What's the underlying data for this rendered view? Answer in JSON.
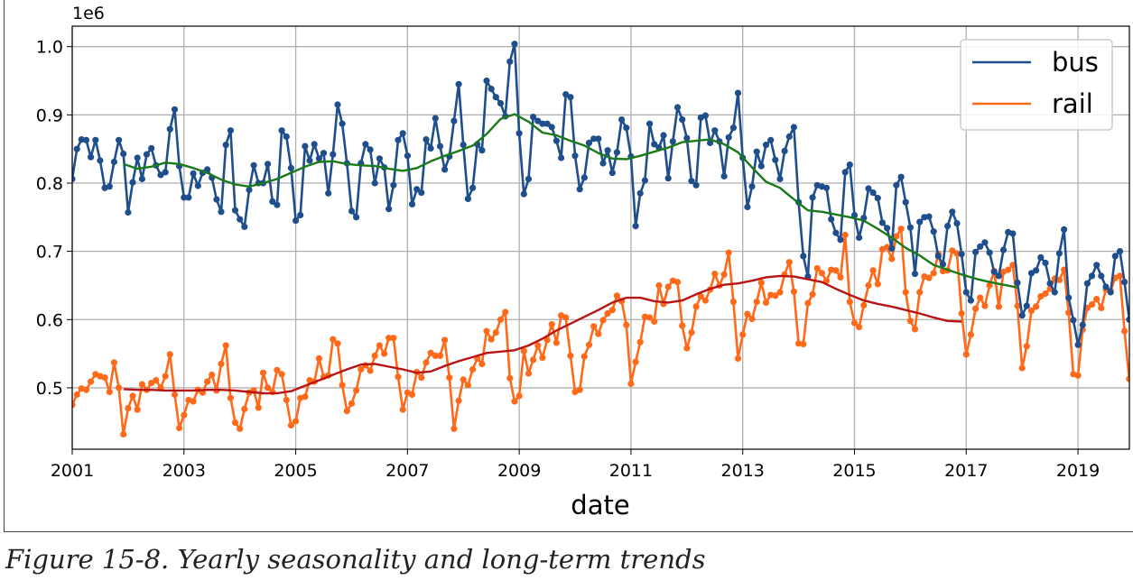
{
  "caption": "Figure 15-8. Yearly seasonality and long-term trends",
  "chart_data": {
    "type": "line",
    "title": "",
    "xlabel": "date",
    "ylabel": "",
    "y_offset_label": "1e6",
    "xlim": [
      2001.0,
      2019.92
    ],
    "ylim": [
      0.41,
      1.03
    ],
    "grid": true,
    "legend_placement": "top-right",
    "x_ticks": [
      "2001",
      "2003",
      "2005",
      "2007",
      "2009",
      "2011",
      "2013",
      "2015",
      "2017",
      "2019"
    ],
    "y_ticks": [
      "0.5",
      "0.6",
      "0.7",
      "0.8",
      "0.9",
      "1.0"
    ],
    "series": [
      {
        "name": "bus",
        "color": "#1f4e8c",
        "markers": true,
        "x_start": 2001.0,
        "x_step_months": 1,
        "values": [
          0.806,
          0.85,
          0.864,
          0.863,
          0.838,
          0.863,
          0.833,
          0.793,
          0.795,
          0.831,
          0.863,
          0.843,
          0.757,
          0.801,
          0.837,
          0.806,
          0.842,
          0.851,
          0.826,
          0.812,
          0.816,
          0.879,
          0.908,
          0.825,
          0.779,
          0.779,
          0.814,
          0.796,
          0.815,
          0.82,
          0.808,
          0.776,
          0.758,
          0.856,
          0.877,
          0.76,
          0.747,
          0.736,
          0.79,
          0.826,
          0.8,
          0.8,
          0.828,
          0.773,
          0.768,
          0.877,
          0.868,
          0.822,
          0.745,
          0.753,
          0.854,
          0.833,
          0.857,
          0.836,
          0.844,
          0.785,
          0.842,
          0.915,
          0.887,
          0.829,
          0.759,
          0.75,
          0.829,
          0.857,
          0.849,
          0.8,
          0.836,
          0.823,
          0.762,
          0.797,
          0.863,
          0.873,
          0.84,
          0.769,
          0.791,
          0.786,
          0.864,
          0.851,
          0.895,
          0.854,
          0.82,
          0.839,
          0.891,
          0.945,
          0.856,
          0.777,
          0.793,
          0.857,
          0.848,
          0.95,
          0.938,
          0.926,
          0.917,
          0.898,
          0.978,
          1.004,
          0.873,
          0.784,
          0.806,
          0.897,
          0.891,
          0.887,
          0.887,
          0.882,
          0.862,
          0.837,
          0.93,
          0.926,
          0.84,
          0.791,
          0.808,
          0.859,
          0.865,
          0.865,
          0.829,
          0.848,
          0.815,
          0.845,
          0.893,
          0.881,
          0.839,
          0.737,
          0.785,
          0.804,
          0.887,
          0.857,
          0.852,
          0.87,
          0.807,
          0.861,
          0.911,
          0.893,
          0.866,
          0.803,
          0.797,
          0.896,
          0.899,
          0.859,
          0.877,
          0.861,
          0.81,
          0.867,
          0.881,
          0.932,
          0.837,
          0.765,
          0.795,
          0.846,
          0.825,
          0.856,
          0.863,
          0.834,
          0.806,
          0.847,
          0.868,
          0.882,
          0.772,
          0.693,
          0.663,
          0.779,
          0.797,
          0.795,
          0.793,
          0.747,
          0.727,
          0.717,
          0.816,
          0.827,
          0.753,
          0.72,
          0.749,
          0.792,
          0.786,
          0.778,
          0.742,
          0.734,
          0.704,
          0.797,
          0.809,
          0.772,
          0.735,
          0.667,
          0.743,
          0.75,
          0.751,
          0.729,
          0.693,
          0.681,
          0.737,
          0.758,
          0.741,
          0.696,
          0.64,
          0.628,
          0.699,
          0.707,
          0.713,
          0.698,
          0.67,
          0.664,
          0.702,
          0.728,
          0.726,
          0.654,
          0.606,
          0.62,
          0.668,
          0.672,
          0.691,
          0.683,
          0.653,
          0.64,
          0.697,
          0.732,
          0.632,
          0.599,
          0.563,
          0.592,
          0.653,
          0.664,
          0.68,
          0.664,
          0.648,
          0.64,
          0.693,
          0.7,
          0.655,
          0.6
        ]
      },
      {
        "name": "rail",
        "color": "#ff6a1a",
        "markers": true,
        "x_start": 2001.0,
        "x_step_months": 1,
        "values": [
          0.475,
          0.49,
          0.499,
          0.497,
          0.509,
          0.52,
          0.517,
          0.515,
          0.494,
          0.537,
          0.5,
          0.432,
          0.47,
          0.488,
          0.468,
          0.505,
          0.497,
          0.507,
          0.511,
          0.5,
          0.517,
          0.549,
          0.49,
          0.441,
          0.46,
          0.482,
          0.48,
          0.497,
          0.493,
          0.509,
          0.519,
          0.496,
          0.535,
          0.562,
          0.485,
          0.449,
          0.44,
          0.469,
          0.493,
          0.496,
          0.471,
          0.522,
          0.5,
          0.494,
          0.526,
          0.52,
          0.482,
          0.445,
          0.451,
          0.485,
          0.487,
          0.511,
          0.509,
          0.543,
          0.516,
          0.518,
          0.571,
          0.565,
          0.504,
          0.466,
          0.477,
          0.496,
          0.527,
          0.533,
          0.525,
          0.547,
          0.562,
          0.55,
          0.573,
          0.573,
          0.516,
          0.468,
          0.493,
          0.49,
          0.523,
          0.515,
          0.537,
          0.551,
          0.547,
          0.547,
          0.57,
          0.515,
          0.44,
          0.481,
          0.512,
          0.504,
          0.527,
          0.543,
          0.535,
          0.583,
          0.571,
          0.581,
          0.6,
          0.611,
          0.514,
          0.48,
          0.488,
          0.554,
          0.521,
          0.541,
          0.562,
          0.544,
          0.57,
          0.593,
          0.566,
          0.606,
          0.603,
          0.547,
          0.494,
          0.497,
          0.546,
          0.563,
          0.59,
          0.579,
          0.599,
          0.609,
          0.614,
          0.635,
          0.627,
          0.592,
          0.506,
          0.538,
          0.567,
          0.604,
          0.603,
          0.597,
          0.65,
          0.623,
          0.648,
          0.657,
          0.655,
          0.591,
          0.558,
          0.581,
          0.619,
          0.634,
          0.628,
          0.644,
          0.667,
          0.65,
          0.666,
          0.698,
          0.626,
          0.543,
          0.578,
          0.608,
          0.601,
          0.626,
          0.654,
          0.625,
          0.636,
          0.635,
          0.64,
          0.666,
          0.684,
          0.641,
          0.565,
          0.564,
          0.624,
          0.637,
          0.675,
          0.668,
          0.657,
          0.673,
          0.672,
          0.662,
          0.724,
          0.626,
          0.595,
          0.589,
          0.621,
          0.65,
          0.672,
          0.652,
          0.703,
          0.706,
          0.689,
          0.722,
          0.733,
          0.64,
          0.598,
          0.586,
          0.64,
          0.663,
          0.661,
          0.668,
          0.696,
          0.671,
          0.672,
          0.701,
          0.697,
          0.609,
          0.549,
          0.578,
          0.616,
          0.632,
          0.62,
          0.65,
          0.671,
          0.619,
          0.67,
          0.673,
          0.68,
          0.62,
          0.529,
          0.561,
          0.613,
          0.619,
          0.634,
          0.638,
          0.645,
          0.66,
          0.658,
          0.673,
          0.61,
          0.52,
          0.518,
          0.585,
          0.617,
          0.622,
          0.63,
          0.617,
          0.644,
          0.642,
          0.661,
          0.664,
          0.583,
          0.513
        ]
      },
      {
        "name": "",
        "color": "#1a7a1a",
        "markers": false,
        "x_start": 2001.917,
        "x_step_months": 3,
        "values": [
          0.828,
          0.821,
          0.824,
          0.83,
          0.828,
          0.822,
          0.815,
          0.805,
          0.798,
          0.795,
          0.8,
          0.806,
          0.815,
          0.824,
          0.831,
          0.832,
          0.828,
          0.826,
          0.825,
          0.821,
          0.818,
          0.822,
          0.832,
          0.84,
          0.847,
          0.855,
          0.872,
          0.894,
          0.901,
          0.89,
          0.874,
          0.87,
          0.862,
          0.855,
          0.844,
          0.836,
          0.835,
          0.84,
          0.846,
          0.852,
          0.86,
          0.862,
          0.864,
          0.857,
          0.845,
          0.823,
          0.802,
          0.793,
          0.776,
          0.76,
          0.758,
          0.754,
          0.75,
          0.745,
          0.733,
          0.72,
          0.705,
          0.694,
          0.68,
          0.673,
          0.666,
          0.66,
          0.655,
          0.651,
          0.647
        ]
      },
      {
        "name": "",
        "color": "#b81414",
        "markers": false,
        "x_start": 2001.917,
        "x_step_months": 3,
        "values": [
          0.498,
          0.497,
          0.497,
          0.496,
          0.496,
          0.496,
          0.497,
          0.497,
          0.496,
          0.494,
          0.492,
          0.492,
          0.495,
          0.503,
          0.511,
          0.519,
          0.527,
          0.534,
          0.535,
          0.531,
          0.527,
          0.522,
          0.524,
          0.532,
          0.539,
          0.545,
          0.551,
          0.553,
          0.555,
          0.562,
          0.572,
          0.584,
          0.594,
          0.604,
          0.614,
          0.625,
          0.632,
          0.632,
          0.627,
          0.625,
          0.628,
          0.637,
          0.645,
          0.651,
          0.653,
          0.657,
          0.662,
          0.664,
          0.663,
          0.659,
          0.655,
          0.645,
          0.636,
          0.628,
          0.623,
          0.619,
          0.614,
          0.609,
          0.603,
          0.598,
          0.597
        ]
      }
    ]
  }
}
